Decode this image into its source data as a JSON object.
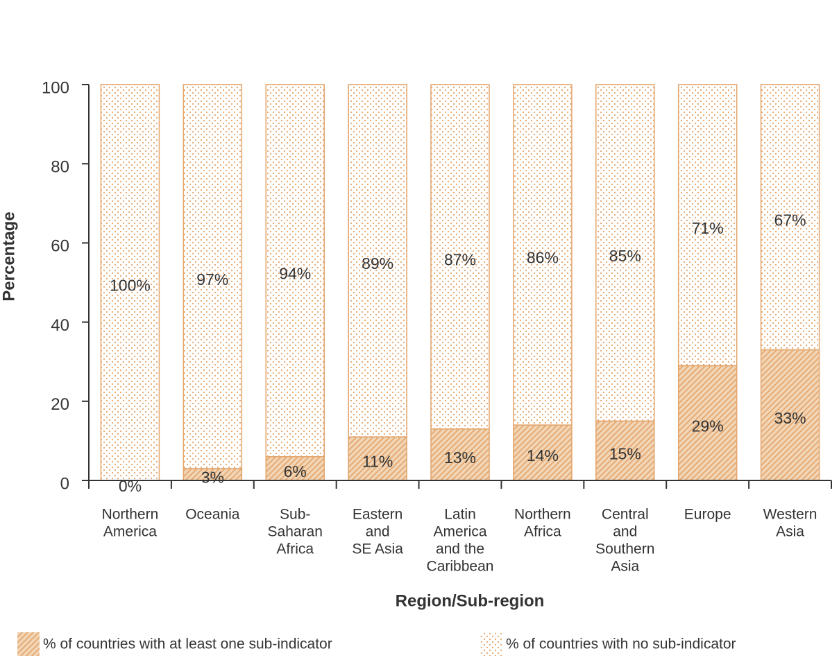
{
  "chart_data": {
    "type": "stacked_bar",
    "x_label": "Region/Sub-region",
    "y_label": "Percentage",
    "categories": [
      [
        "Northern",
        "America"
      ],
      [
        "Oceania"
      ],
      [
        "Sub-",
        "Saharan",
        "Africa"
      ],
      [
        "Eastern",
        "and",
        "SE Asia"
      ],
      [
        "Latin",
        "America",
        "and the",
        "Caribbean"
      ],
      [
        "Northern",
        "Africa"
      ],
      [
        "Central",
        "and",
        "Southern",
        "Asia"
      ],
      [
        "Europe"
      ],
      [
        "Western",
        "Asia"
      ]
    ],
    "series": [
      {
        "name": "% of countries with at least one sub-indicator",
        "color": "#e3a46a",
        "pattern": "hatch",
        "values": [
          0,
          3,
          6,
          11,
          13,
          14,
          15,
          29,
          33
        ],
        "value_labels": [
          "0%",
          "3%",
          "6%",
          "11%",
          "13%",
          "14%",
          "15%",
          "29%",
          "33%"
        ]
      },
      {
        "name": "% of countries with no sub-indicator",
        "color": "#e3a46a",
        "pattern": "dots",
        "values": [
          100,
          97,
          94,
          89,
          87,
          86,
          85,
          71,
          67
        ],
        "value_labels": [
          "100%",
          "97%",
          "94%",
          "89%",
          "87%",
          "86%",
          "85%",
          "71%",
          "67%"
        ]
      }
    ],
    "ylim": [
      0,
      100
    ],
    "yticks": [
      0,
      20,
      40,
      60,
      80,
      100
    ],
    "grid": false
  }
}
